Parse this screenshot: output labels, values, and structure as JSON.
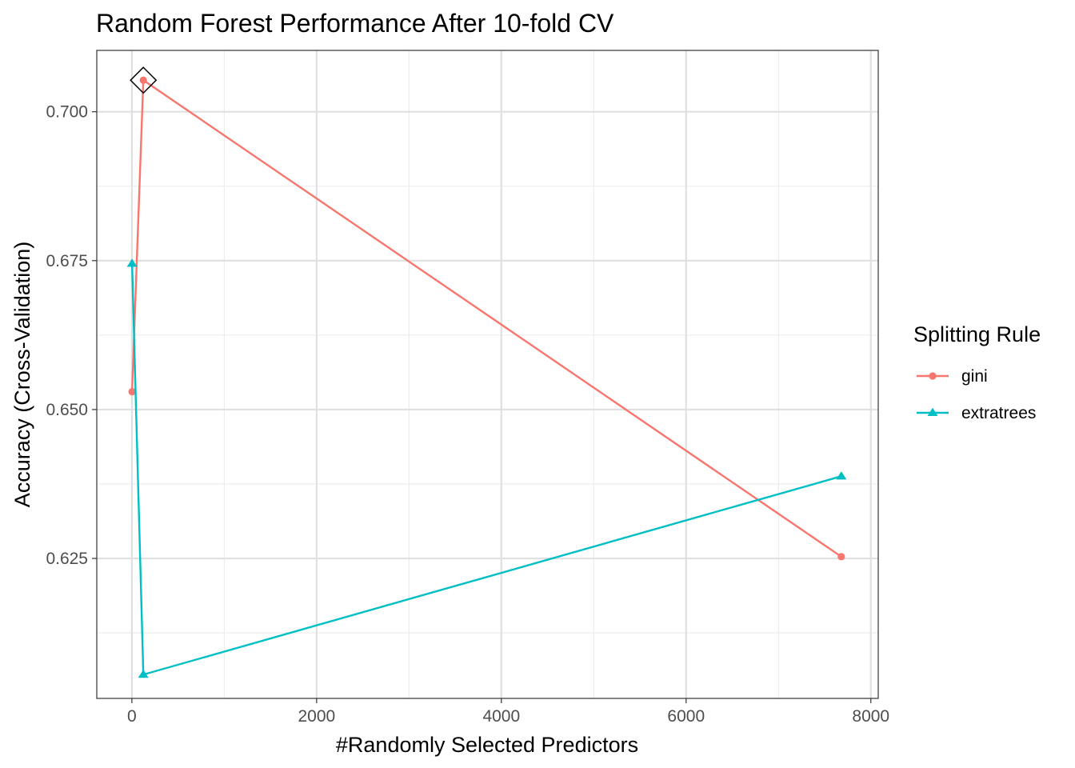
{
  "chart_data": {
    "type": "line",
    "title": "Random Forest Performance After 10-fold CV",
    "xlabel": "#Randomly Selected Predictors",
    "ylabel": "Accuracy (Cross-Validation)",
    "xlim": [
      -380,
      8080
    ],
    "ylim": [
      0.6015,
      0.7103
    ],
    "x_ticks": [
      0,
      2000,
      4000,
      6000,
      8000
    ],
    "x_tick_labels": [
      "0",
      "2000",
      "4000",
      "6000",
      "8000"
    ],
    "y_ticks": [
      0.625,
      0.65,
      0.675,
      0.7
    ],
    "y_tick_labels": [
      "0.625",
      "0.650",
      "0.675",
      "0.700"
    ],
    "grid": true,
    "legend": {
      "title": "Splitting Rule",
      "position": "right"
    },
    "series": [
      {
        "name": "gini",
        "color": "#F8766D",
        "marker": "circle",
        "points": [
          {
            "x": 2,
            "y": 0.653
          },
          {
            "x": 124,
            "y": 0.7053
          },
          {
            "x": 7680,
            "y": 0.6253
          }
        ]
      },
      {
        "name": "extratrees",
        "color": "#00BFC4",
        "marker": "triangle",
        "points": [
          {
            "x": 2,
            "y": 0.6745
          },
          {
            "x": 124,
            "y": 0.6055
          },
          {
            "x": 7680,
            "y": 0.6388
          }
        ]
      }
    ],
    "best_point": {
      "x": 124,
      "y": 0.7053,
      "marker": "diamond"
    }
  }
}
